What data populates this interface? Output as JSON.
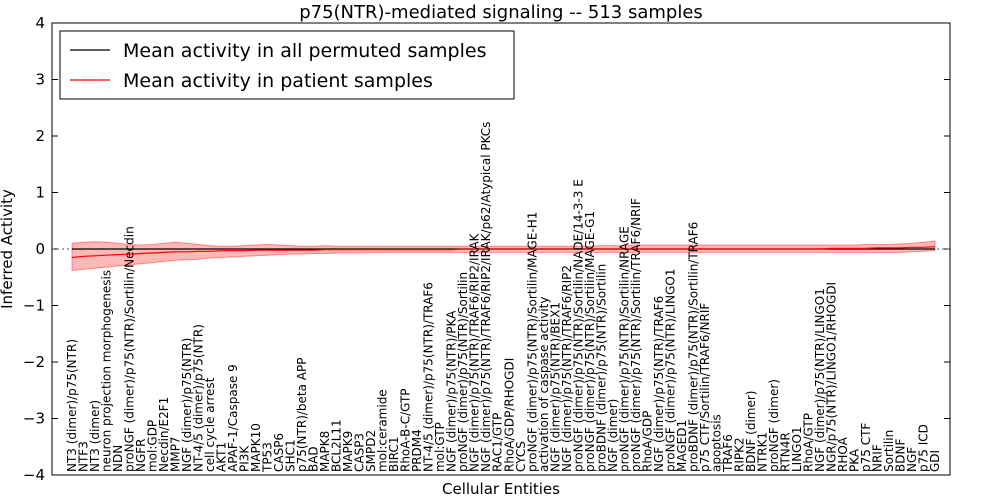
{
  "chart_data": {
    "type": "line",
    "title": "p75(NTR)-mediated signaling -- 513 samples",
    "xlabel": "Cellular Entities",
    "ylabel": "Inferred Activity",
    "ylim": [
      -4,
      4
    ],
    "yticks": [
      4,
      3,
      2,
      1,
      0,
      -1,
      -2,
      -3,
      -4
    ],
    "reference_line": 0,
    "legend_position": "top-left",
    "series": [
      {
        "name": "Mean activity in all permuted samples",
        "color": "#000000",
        "values": [
          0.0,
          0.0,
          0.0,
          0.0,
          0.0,
          0.0,
          0.0,
          0.0,
          0.0,
          0.0,
          0.0,
          0.0,
          0.0,
          0.0,
          0.0,
          0.0,
          0.0,
          0.0,
          0.0,
          0.0,
          0.0,
          0.0,
          0.0,
          0.0,
          0.0,
          0.0,
          0.0,
          0.0,
          0.0,
          0.0,
          0.0,
          0.0,
          0.0,
          0.0,
          0.0,
          0.0,
          0.0,
          0.0,
          0.0,
          0.0,
          0.0,
          0.0,
          0.0,
          0.0,
          0.0,
          0.0,
          0.0,
          0.0,
          0.0,
          0.0,
          0.0,
          0.0,
          0.0,
          0.0,
          0.0,
          0.0,
          0.0,
          0.0,
          0.0,
          0.0,
          0.0,
          0.0,
          0.0,
          0.0,
          0.0,
          0.0,
          0.0,
          0.0,
          0.0,
          0.0,
          0.0,
          0.0,
          0.0,
          0.0,
          0.0,
          0.0
        ]
      },
      {
        "name": "Mean activity in patient samples",
        "color": "#ff0000",
        "values": [
          -0.15,
          -0.13,
          -0.12,
          -0.11,
          -0.1,
          -0.09,
          -0.08,
          -0.07,
          -0.06,
          -0.05,
          -0.05,
          -0.04,
          -0.04,
          -0.03,
          -0.03,
          -0.03,
          -0.02,
          -0.02,
          -0.02,
          -0.02,
          -0.02,
          -0.02,
          -0.01,
          -0.01,
          -0.01,
          -0.01,
          -0.01,
          -0.01,
          -0.01,
          -0.01,
          -0.01,
          -0.01,
          -0.01,
          -0.01,
          0.0,
          0.0,
          0.0,
          0.0,
          0.0,
          0.0,
          0.0,
          0.0,
          0.0,
          0.0,
          0.0,
          0.0,
          0.0,
          0.0,
          0.0,
          0.0,
          0.0,
          0.0,
          0.0,
          0.0,
          0.0,
          0.0,
          0.0,
          0.0,
          0.0,
          0.0,
          0.0,
          0.0,
          0.0,
          0.0,
          0.0,
          0.0,
          0.01,
          0.01,
          0.01,
          0.01,
          0.02,
          0.02,
          0.02,
          0.03,
          0.03,
          0.04
        ]
      }
    ],
    "band": {
      "color": "#ff0000",
      "upper": [
        0.1,
        0.12,
        0.13,
        0.12,
        0.1,
        0.08,
        0.07,
        0.08,
        0.1,
        0.12,
        0.1,
        0.08,
        0.06,
        0.05,
        0.05,
        0.06,
        0.07,
        0.08,
        0.07,
        0.06,
        0.05,
        0.05,
        0.06,
        0.05,
        0.05,
        0.05,
        0.05,
        0.05,
        0.05,
        0.05,
        0.05,
        0.05,
        0.05,
        0.05,
        0.05,
        0.05,
        0.05,
        0.05,
        0.05,
        0.05,
        0.05,
        0.05,
        0.05,
        0.05,
        0.05,
        0.05,
        0.06,
        0.06,
        0.06,
        0.07,
        0.07,
        0.07,
        0.07,
        0.07,
        0.07,
        0.07,
        0.07,
        0.07,
        0.07,
        0.07,
        0.07,
        0.07,
        0.07,
        0.07,
        0.07,
        0.07,
        0.07,
        0.07,
        0.07,
        0.08,
        0.08,
        0.08,
        0.09,
        0.1,
        0.12,
        0.14
      ],
      "lower": [
        -0.38,
        -0.36,
        -0.34,
        -0.32,
        -0.3,
        -0.28,
        -0.26,
        -0.24,
        -0.22,
        -0.2,
        -0.19,
        -0.18,
        -0.16,
        -0.15,
        -0.14,
        -0.13,
        -0.12,
        -0.11,
        -0.1,
        -0.09,
        -0.09,
        -0.08,
        -0.08,
        -0.07,
        -0.07,
        -0.07,
        -0.06,
        -0.06,
        -0.06,
        -0.06,
        -0.06,
        -0.06,
        -0.06,
        -0.06,
        -0.06,
        -0.06,
        -0.06,
        -0.06,
        -0.06,
        -0.06,
        -0.06,
        -0.06,
        -0.06,
        -0.06,
        -0.06,
        -0.06,
        -0.06,
        -0.06,
        -0.06,
        -0.06,
        -0.06,
        -0.06,
        -0.06,
        -0.06,
        -0.06,
        -0.06,
        -0.06,
        -0.06,
        -0.06,
        -0.06,
        -0.06,
        -0.06,
        -0.06,
        -0.06,
        -0.06,
        -0.06,
        -0.06,
        -0.06,
        -0.06,
        -0.06,
        -0.06,
        -0.06,
        -0.06,
        -0.05,
        -0.04,
        -0.03
      ]
    },
    "categories": [
      "NT3 (dimer)/p75(NTR)",
      "NTF3",
      "NT3 (dimer)",
      "neuron projection morphogenesis",
      "NDN",
      "proNGF (dimer)/p75(NTR)/Sortilin/Necdin",
      "NGFR",
      "mol:GDP",
      "Necdin/E2F1",
      "MMP7",
      "NGF (dimer)/p75(NTR)",
      "NT-4/5 (dimer)/p75(NTR)",
      "cell cycle arrest",
      "AKT1",
      "APAF-1/Caspase 9",
      "PI3K",
      "MAPK10",
      "TP53",
      "CASP6",
      "SHC1",
      "p75(NTR)/beta APP",
      "BAD",
      "MAPK8",
      "BCL2L11",
      "MAPK9",
      "CASP3",
      "SMPD2",
      "mol:ceramide",
      "BIRC1",
      "RhoA-B-C/GTP",
      "PRDM4",
      "NT-4/5 (dimer)/p75(NTR)/TRAF6",
      "mol:GTP",
      "NGF (dimer)/p75(NTR)/PKA",
      "proNGF (dimer)/p75(NTR)/Sortilin",
      "NGF (dimer)/p75(NTR)/TRAF6/RIP2/IRAK",
      "NGF (dimer)/p75(NTR)/TRAF6/RIP2/IRAK/p62/Atypical PKCs",
      "RAC1/GTP",
      "RhoA/GDP/RHOGDI",
      "CYCS",
      "proNGF (dimer)/p75(NTR)/Sortilin/MAGE-H1",
      "activation of caspase activity",
      "NGF (dimer)/p75(NTR)/BEX1",
      "NGF (dimer)/p75(NTR)/TRAF6/RIP2",
      "proNGF (dimer)/p75(NTR)/Sortilin/NADE/14-3-3 E",
      "proNGF (dimer)/p75(NTR)/Sortilin/MAGE-G1",
      "proBDNF (dimer)/p75(NTR)/Sortilin",
      "NGF (dimer)",
      "proNGF (dimer)/p75(NTR)/Sortilin/NRAGE",
      "proNGF (dimer)/p75(NTR)/Sortilin/TRAF6/NRIF",
      "RhoA/GDP",
      "NGF (dimer)/p75(NTR)/TRAF6",
      "proNGF (dimer)/p75(NTR)/LINGO1",
      "MAGED1",
      "proBDNF (dimer)/p75(NTR)/Sortilin/TRAF6",
      "p75 CTF/Sortilin/TRAF6/NRIF",
      "apoptosis",
      "TRAF6",
      "RIPK2",
      "BDNF (dimer)",
      "NTRK1",
      "proNGF (dimer)",
      "RTN4R",
      "LINGO1",
      "RhoA/GTP",
      "NGF (dimer)/p75(NTR)/LINGO1",
      "NGR/p75(NTR)/LINGO1/RHOGDI",
      "RHOA",
      "PKA",
      "p75 CTF",
      "NRIF",
      "Sortilin",
      "BDNF",
      "NGF",
      "p75 ICD",
      "GDI"
    ]
  }
}
